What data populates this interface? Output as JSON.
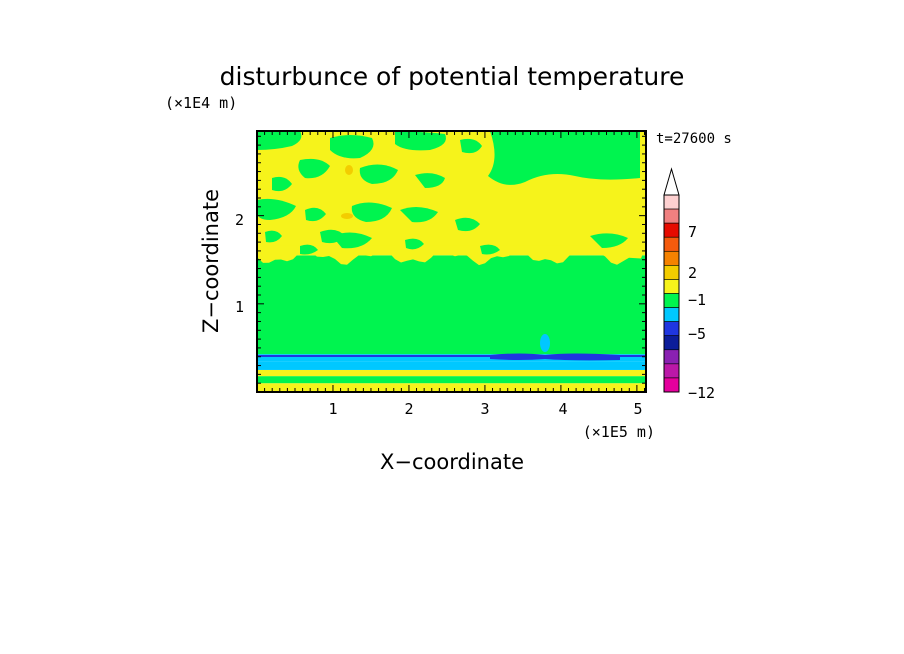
{
  "chart_data": {
    "type": "heatmap",
    "title": "disturbunce of potential temperature",
    "xlabel": "X−coordinate",
    "ylabel": "Z−coordinate",
    "x_unit": "(×1E5 m)",
    "y_unit": "(×1E4 m)",
    "time_label": "t=27600 s",
    "xlim": [
      0,
      5.12
    ],
    "ylim": [
      0,
      2.96
    ],
    "x_ticks": [
      "1",
      "2",
      "3",
      "4",
      "5"
    ],
    "y_ticks": [
      "1",
      "2"
    ],
    "grid": false,
    "colorbar": {
      "placement": "right",
      "extend": "max",
      "levels": [
        -12,
        -11,
        -9,
        -7,
        -5,
        -4,
        -3,
        -1,
        0,
        1,
        2,
        4,
        5,
        7,
        8,
        9,
        11
      ],
      "colors": [
        "#e5009d",
        "#bb18a8",
        "#8a21b2",
        "#0c1d9a",
        "#1f36e0",
        "#00c8ff",
        "#00f44f",
        "#f6f31b",
        "#f3cd00",
        "#f58200",
        "#f55b0d",
        "#e60b00",
        "#f08080",
        "#fdd0d0",
        "#ffffff"
      ],
      "tick_labels": [
        "7",
        "2",
        "−1",
        "−5",
        "−12"
      ]
    },
    "bands": [
      {
        "z_from": 0.0,
        "z_to": 0.1,
        "color": "#f6f31b"
      },
      {
        "z_from": 0.1,
        "z_to": 0.18,
        "color": "#00f44f"
      },
      {
        "z_from": 0.18,
        "z_to": 0.25,
        "color": "#f6f31b"
      },
      {
        "z_from": 0.25,
        "z_to": 0.35,
        "color": "#00c8ff"
      },
      {
        "z_from": 0.35,
        "z_to": 0.43,
        "color": "#00c8ff"
      },
      {
        "z_from": 0.43,
        "z_to": 1.55,
        "color": "#00f44f"
      },
      {
        "z_from": 1.55,
        "z_to": 2.96,
        "color": "#f6f31b"
      }
    ]
  }
}
